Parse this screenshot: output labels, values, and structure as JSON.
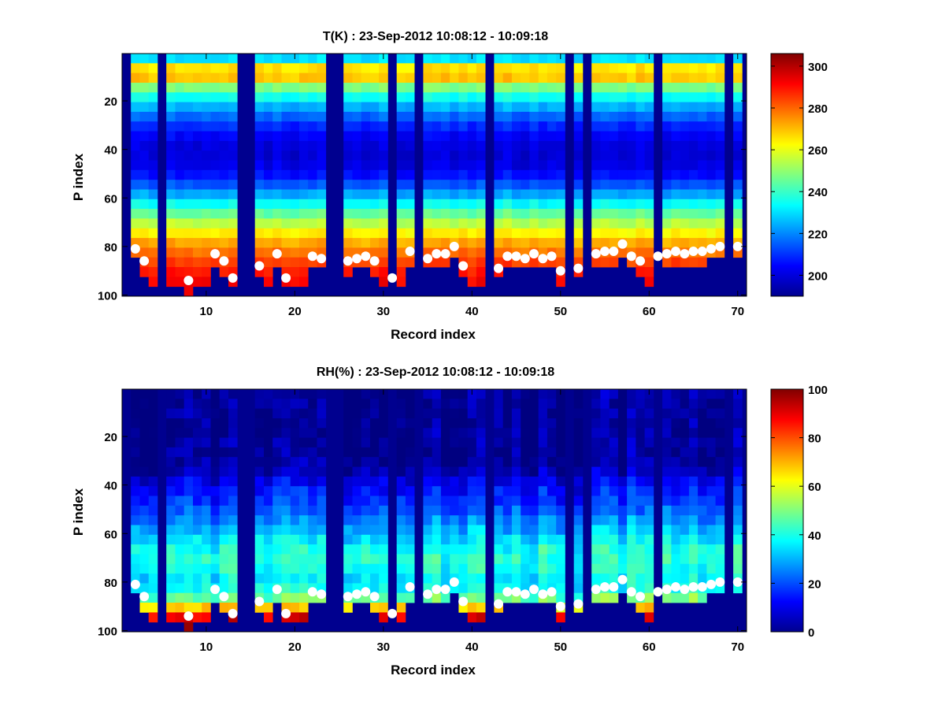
{
  "figure": {
    "background": "#ffffff",
    "colormap": "jet",
    "marker_color": "#ffffff",
    "nodata_color": "#00008f"
  },
  "chart_data": [
    {
      "type": "heatmap",
      "title": "T(K) : 23-Sep-2012 10:08:12 - 10:09:18",
      "xlabel": "Record index",
      "ylabel": "P index",
      "xlim": [
        0.5,
        71
      ],
      "ylim": [
        100.5,
        0.5
      ],
      "y_reversed": true,
      "xticks": [
        10,
        20,
        30,
        40,
        50,
        60,
        70
      ],
      "yticks": [
        20,
        40,
        60,
        80,
        100
      ],
      "colorbar": {
        "min": 190,
        "max": 306,
        "ticks": [
          200,
          220,
          240,
          260,
          280,
          300
        ]
      },
      "missing_records": [
        1,
        5,
        14,
        15,
        24,
        25,
        31,
        34,
        42,
        51,
        53,
        61,
        69
      ],
      "profile": {
        "p_index": [
          1,
          3,
          5,
          8,
          10,
          12,
          15,
          20,
          25,
          30,
          35,
          40,
          45,
          50,
          55,
          60,
          65,
          70,
          75,
          80,
          85,
          90,
          95,
          100
        ],
        "value": [
          212,
          230,
          252,
          272,
          276,
          262,
          248,
          232,
          220,
          210,
          204,
          200,
          200,
          204,
          214,
          226,
          240,
          252,
          264,
          274,
          282,
          288,
          292,
          292
        ]
      },
      "surface_markers": {
        "record": [
          2,
          3,
          8,
          11,
          12,
          13,
          16,
          18,
          19,
          22,
          23,
          26,
          27,
          28,
          29,
          31,
          33,
          35,
          36,
          37,
          38,
          39,
          43,
          44,
          45,
          46,
          47,
          48,
          49,
          50,
          52,
          54,
          55,
          56,
          57,
          58,
          59,
          61,
          62,
          63,
          64,
          65,
          66,
          67,
          68,
          70
        ],
        "p_index": [
          81,
          86,
          94,
          83,
          86,
          93,
          88,
          83,
          93,
          84,
          85,
          86,
          85,
          84,
          86,
          93,
          82,
          85,
          83,
          83,
          80,
          88,
          89,
          84,
          84,
          85,
          83,
          85,
          84,
          90,
          89,
          83,
          82,
          82,
          79,
          84,
          86,
          84,
          83,
          82,
          83,
          82,
          82,
          81,
          80,
          80
        ]
      }
    },
    {
      "type": "heatmap",
      "title": "RH(%) : 23-Sep-2012 10:08:12 - 10:09:18",
      "xlabel": "Record index",
      "ylabel": "P index",
      "xlim": [
        0.5,
        71
      ],
      "ylim": [
        100.5,
        0.5
      ],
      "y_reversed": true,
      "xticks": [
        10,
        20,
        30,
        40,
        50,
        60,
        70
      ],
      "yticks": [
        20,
        40,
        60,
        80,
        100
      ],
      "colorbar": {
        "min": 0,
        "max": 100,
        "ticks": [
          0,
          20,
          40,
          60,
          80,
          100
        ]
      },
      "missing_records": [
        1,
        5,
        14,
        15,
        24,
        25,
        31,
        34,
        42,
        51,
        53,
        61,
        69
      ],
      "profile": {
        "p_index": [
          1,
          30,
          35,
          40,
          45,
          50,
          55,
          60,
          65,
          70,
          75,
          80,
          85,
          90,
          95,
          100
        ],
        "value": [
          2,
          2,
          6,
          12,
          16,
          20,
          26,
          32,
          38,
          42,
          40,
          36,
          40,
          60,
          90,
          92
        ]
      },
      "surface_markers": {
        "record": [
          2,
          3,
          8,
          11,
          12,
          13,
          16,
          18,
          19,
          22,
          23,
          26,
          27,
          28,
          29,
          31,
          33,
          35,
          36,
          37,
          38,
          39,
          43,
          44,
          45,
          46,
          47,
          48,
          49,
          50,
          52,
          54,
          55,
          56,
          57,
          58,
          59,
          61,
          62,
          63,
          64,
          65,
          66,
          67,
          68,
          70
        ],
        "p_index": [
          81,
          86,
          94,
          83,
          86,
          93,
          88,
          83,
          93,
          84,
          85,
          86,
          85,
          84,
          86,
          93,
          82,
          85,
          83,
          83,
          80,
          88,
          89,
          84,
          84,
          85,
          83,
          85,
          84,
          90,
          89,
          83,
          82,
          82,
          79,
          84,
          86,
          84,
          83,
          82,
          83,
          82,
          82,
          81,
          80,
          80
        ]
      }
    }
  ]
}
